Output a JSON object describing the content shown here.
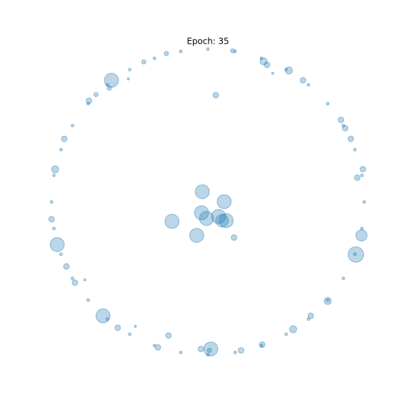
{
  "chart_data": {
    "type": "scatter",
    "title": "Epoch: 35",
    "color": "#1f77b4",
    "xlim": [
      -1.1,
      1.1
    ],
    "ylim": [
      -1.1,
      1.1
    ],
    "x": [
      -0.036,
      0.104,
      -0.041,
      0.068,
      -0.009,
      0.117,
      0.09,
      -0.23,
      -0.072,
      0.167,
      0.05,
      -0.617,
      -0.964,
      -0.671,
      0.018,
      0.946,
      0.982,
      -0.252,
      0.356,
      0.378,
      0.955,
      0.766,
      0.545,
      -0.577,
      0.518,
      0.608,
      0.851,
      0.878,
      0.914,
      -0.977,
      -0.919,
      -0.761,
      -0.716,
      -0.41,
      -0.266,
      -0.045,
      0.347,
      0.212,
      -0.32,
      -0.851,
      -0.905,
      -1.0,
      0.991,
      0.658,
      -0.631,
      0.158,
      0.009,
      -0.509,
      0.414,
      -0.788,
      -0.464,
      1,
      0.985,
      0.94,
      0.866,
      0.766,
      0.643,
      0.5,
      0.342,
      0.174,
      0,
      -0.174,
      -0.342,
      -0.5,
      -0.643,
      -0.766,
      -0.866,
      -0.94,
      -0.985,
      -1,
      -0.985,
      -0.94,
      -0.866,
      -0.766,
      -0.643,
      -0.5,
      -0.342,
      -0.174,
      0,
      0.174,
      0.342,
      0.5,
      0.643,
      0.766,
      0.866,
      0.94,
      0.985
    ],
    "y": [
      0.067,
      0.002,
      -0.071,
      -0.095,
      -0.108,
      -0.122,
      -0.122,
      -0.127,
      -0.219,
      -0.233,
      0.699,
      0.796,
      -0.279,
      -0.745,
      -0.962,
      -0.344,
      -0.219,
      -0.874,
      0.92,
      0.897,
      0.159,
      -0.648,
      -0.833,
      -0.823,
      0.86,
      0.796,
      0.537,
      0.482,
      0.413,
      0.214,
      0.413,
      0.662,
      0.703,
      0.916,
      0.971,
      -0.962,
      -0.934,
      -0.971,
      -0.952,
      -0.528,
      -0.422,
      -0.113,
      0.214,
      -0.745,
      0.745,
      0.989,
      -0.971,
      0.805,
      0.842,
      -0.51,
      -0.814,
      0,
      0.174,
      0.342,
      0.5,
      0.643,
      0.766,
      0.866,
      0.94,
      0.985,
      1,
      0.985,
      0.94,
      0.866,
      0.766,
      0.643,
      0.5,
      0.342,
      0.174,
      0,
      -0.174,
      -0.342,
      -0.5,
      -0.643,
      -0.766,
      -0.866,
      -0.94,
      -0.985,
      -1,
      -0.985,
      -0.94,
      -0.866,
      -0.766,
      -0.643,
      -0.5,
      -0.342,
      -0.174
    ],
    "sizes": [
      10,
      10,
      10,
      10,
      10,
      10,
      9,
      10,
      10,
      4,
      4,
      10,
      10,
      10,
      10,
      11,
      8,
      4,
      5,
      4,
      4,
      5,
      5,
      4,
      5,
      4,
      4,
      4,
      4,
      5,
      4,
      4,
      3,
      3,
      3,
      4,
      4,
      4,
      4,
      4,
      4,
      4,
      4,
      4,
      3,
      3,
      3,
      1.5,
      1.5,
      1.5,
      1.5,
      2,
      2,
      2,
      2,
      2,
      2,
      2,
      2,
      2,
      2,
      2,
      2,
      2,
      2,
      2,
      2,
      2,
      2,
      2,
      2,
      2,
      2,
      2,
      2,
      2,
      2,
      2,
      2,
      2,
      2,
      2,
      2,
      2,
      2,
      2,
      2
    ]
  }
}
